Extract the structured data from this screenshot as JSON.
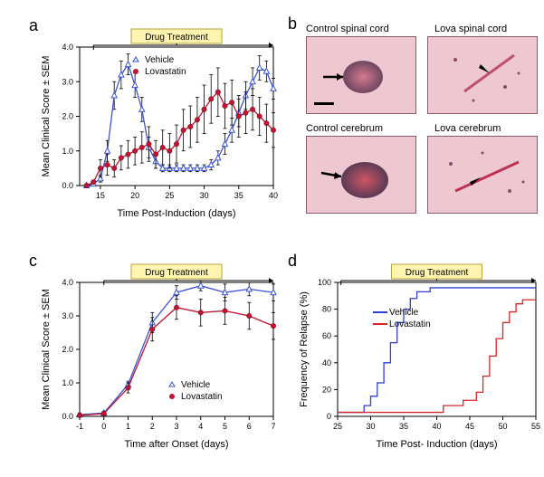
{
  "labels": {
    "a": "a",
    "b": "b",
    "c": "c",
    "d": "d"
  },
  "panel_b": {
    "tl": "Control spinal cord",
    "tr": "Lova spinal cord",
    "bl": "Control cerebrum",
    "br": "Lova cerebrum"
  },
  "a": {
    "type": "line-scatter",
    "title_box": "Drug Treatment",
    "xlabel": "Time Post-Induction (days)",
    "ylabel": "Mean Clinical Score ± SEM",
    "xlim": [
      12,
      40
    ],
    "ylim": [
      0,
      4.0
    ],
    "xticks": [
      15,
      20,
      25,
      30,
      35,
      40
    ],
    "yticks": [
      0,
      1.0,
      2.0,
      3.0,
      4.0
    ],
    "legend": [
      {
        "name": "Vehicle",
        "color": "#3a53d6",
        "marker": "otri",
        "line": "#3a53d6"
      },
      {
        "name": "Lovastatin",
        "color": "#c41230",
        "marker": "fcirc",
        "line": "#c41230"
      }
    ],
    "series": {
      "vehicle": {
        "color": "#3a53d6",
        "marker": "otri",
        "pts": [
          [
            13,
            0
          ],
          [
            14,
            0.05
          ],
          [
            15,
            0.2
          ],
          [
            16,
            1.0
          ],
          [
            17,
            2.6
          ],
          [
            18,
            3.2
          ],
          [
            19,
            3.5
          ],
          [
            20,
            2.9
          ],
          [
            21,
            2.2
          ],
          [
            22,
            1.1
          ],
          [
            23,
            0.7
          ],
          [
            24,
            0.5
          ],
          [
            25,
            0.5
          ],
          [
            26,
            0.5
          ],
          [
            27,
            0.5
          ],
          [
            28,
            0.5
          ],
          [
            29,
            0.5
          ],
          [
            30,
            0.5
          ],
          [
            31,
            0.6
          ],
          [
            32,
            0.8
          ],
          [
            33,
            1.2
          ],
          [
            34,
            1.6
          ],
          [
            35,
            2.1
          ],
          [
            36,
            2.6
          ],
          [
            37,
            3.0
          ],
          [
            38,
            3.4
          ],
          [
            39,
            3.3
          ],
          [
            40,
            2.8
          ]
        ],
        "err": [
          0,
          0,
          0.1,
          0.3,
          0.4,
          0.4,
          0.3,
          0.35,
          0.35,
          0.3,
          0.2,
          0.1,
          0.1,
          0.1,
          0.1,
          0.1,
          0.1,
          0.1,
          0.15,
          0.2,
          0.3,
          0.35,
          0.4,
          0.4,
          0.4,
          0.35,
          0.3,
          0.3
        ]
      },
      "lovastatin": {
        "color": "#c41230",
        "marker": "fcirc",
        "pts": [
          [
            13,
            0
          ],
          [
            14,
            0.1
          ],
          [
            15,
            0.5
          ],
          [
            16,
            0.6
          ],
          [
            17,
            0.5
          ],
          [
            18,
            0.8
          ],
          [
            19,
            0.9
          ],
          [
            20,
            1.0
          ],
          [
            21,
            1.1
          ],
          [
            22,
            1.2
          ],
          [
            23,
            0.9
          ],
          [
            24,
            1.1
          ],
          [
            25,
            1.0
          ],
          [
            26,
            1.2
          ],
          [
            27,
            1.6
          ],
          [
            28,
            1.7
          ],
          [
            29,
            1.9
          ],
          [
            30,
            2.2
          ],
          [
            31,
            2.5
          ],
          [
            32,
            2.7
          ],
          [
            33,
            2.3
          ],
          [
            34,
            2.4
          ],
          [
            35,
            2.0
          ],
          [
            36,
            2.1
          ],
          [
            37,
            2.2
          ],
          [
            38,
            2.0
          ],
          [
            39,
            1.8
          ],
          [
            40,
            1.6
          ]
        ],
        "err": [
          0,
          0.05,
          0.25,
          0.3,
          0.25,
          0.35,
          0.4,
          0.4,
          0.45,
          0.5,
          0.4,
          0.5,
          0.5,
          0.55,
          0.6,
          0.6,
          0.65,
          0.7,
          0.7,
          0.7,
          0.65,
          0.65,
          0.6,
          0.6,
          0.6,
          0.55,
          0.55,
          0.5
        ]
      }
    },
    "colors": {
      "box_bg": "#fff4b0",
      "box_border": "#b5a43a",
      "axis": "#000"
    },
    "font": {
      "axis_label": 11,
      "tick": 9
    }
  },
  "c": {
    "type": "line-scatter",
    "title_box": "Drug Treatment",
    "xlabel": "Time after Onset (days)",
    "ylabel": "Mean Clinical Score ± SEM",
    "xlim": [
      -1,
      7
    ],
    "ylim": [
      0,
      4.0
    ],
    "xticks": [
      -1,
      0,
      1,
      2,
      3,
      4,
      5,
      6,
      7
    ],
    "yticks": [
      0,
      1.0,
      2.0,
      3.0,
      4.0
    ],
    "legend": [
      {
        "name": "Vehicle",
        "color": "#3a53d6",
        "marker": "otri"
      },
      {
        "name": "Lovastatin",
        "color": "#c41230",
        "marker": "fcirc"
      }
    ],
    "series": {
      "vehicle": {
        "color": "#3a53d6",
        "marker": "otri",
        "pts": [
          [
            -1,
            0.05
          ],
          [
            0,
            0.1
          ],
          [
            1,
            0.95
          ],
          [
            2,
            2.8
          ],
          [
            3,
            3.7
          ],
          [
            4,
            3.9
          ],
          [
            5,
            3.7
          ],
          [
            6,
            3.8
          ],
          [
            7,
            3.7
          ]
        ],
        "err": [
          0.05,
          0.05,
          0.1,
          0.3,
          0.2,
          0.15,
          0.25,
          0.2,
          0.25
        ]
      },
      "lovastatin": {
        "color": "#c41230",
        "marker": "fcirc",
        "pts": [
          [
            -1,
            0.03
          ],
          [
            0,
            0.08
          ],
          [
            1,
            0.85
          ],
          [
            2,
            2.6
          ],
          [
            3,
            3.25
          ],
          [
            4,
            3.1
          ],
          [
            5,
            3.15
          ],
          [
            6,
            3.0
          ],
          [
            7,
            2.7
          ]
        ],
        "err": [
          0.05,
          0.05,
          0.15,
          0.35,
          0.35,
          0.4,
          0.4,
          0.4,
          0.4
        ]
      }
    },
    "colors": {
      "box_bg": "#fff4b0",
      "box_border": "#b5a43a",
      "axis": "#000"
    },
    "font": {
      "axis_label": 11,
      "tick": 9
    }
  },
  "d": {
    "type": "step",
    "title_box": "Drug Treatment",
    "xlabel": "Time Post- Induction (days)",
    "ylabel": "Frequency of Relapse (%)",
    "xlim": [
      25,
      55
    ],
    "ylim": [
      0,
      100
    ],
    "xticks": [
      25,
      30,
      35,
      40,
      45,
      50,
      55
    ],
    "yticks": [
      0,
      20,
      40,
      60,
      80,
      100
    ],
    "legend": [
      {
        "name": "Vehicle",
        "color": "#2f3fd0"
      },
      {
        "name": "Lovastatin",
        "color": "#d62728"
      }
    ],
    "series": {
      "vehicle": {
        "color": "#2f3fd0",
        "pts": [
          [
            25,
            3
          ],
          [
            29,
            3
          ],
          [
            29,
            8
          ],
          [
            30,
            8
          ],
          [
            30,
            15
          ],
          [
            31,
            15
          ],
          [
            31,
            25
          ],
          [
            32,
            25
          ],
          [
            32,
            40
          ],
          [
            33,
            40
          ],
          [
            33,
            55
          ],
          [
            34,
            55
          ],
          [
            34,
            70
          ],
          [
            35,
            70
          ],
          [
            35,
            80
          ],
          [
            36,
            80
          ],
          [
            36,
            88
          ],
          [
            37,
            88
          ],
          [
            37,
            93
          ],
          [
            39,
            93
          ],
          [
            39,
            96
          ],
          [
            55,
            96
          ]
        ]
      },
      "lovastatin": {
        "color": "#d62728",
        "pts": [
          [
            25,
            3
          ],
          [
            41,
            3
          ],
          [
            41,
            8
          ],
          [
            44,
            8
          ],
          [
            44,
            12
          ],
          [
            46,
            12
          ],
          [
            46,
            18
          ],
          [
            47,
            18
          ],
          [
            47,
            30
          ],
          [
            48,
            30
          ],
          [
            48,
            45
          ],
          [
            49,
            45
          ],
          [
            49,
            58
          ],
          [
            50,
            58
          ],
          [
            50,
            70
          ],
          [
            51,
            70
          ],
          [
            51,
            78
          ],
          [
            52,
            78
          ],
          [
            52,
            84
          ],
          [
            53,
            84
          ],
          [
            53,
            87
          ],
          [
            55,
            87
          ]
        ]
      }
    },
    "colors": {
      "box_bg": "#fff4b0",
      "box_border": "#b5a43a",
      "axis": "#000"
    },
    "font": {
      "axis_label": 11,
      "tick": 9
    }
  },
  "b": {
    "type": "histology-images",
    "bg": "#eec8d0",
    "border": "#8b5a6b",
    "arrow": "#000"
  }
}
